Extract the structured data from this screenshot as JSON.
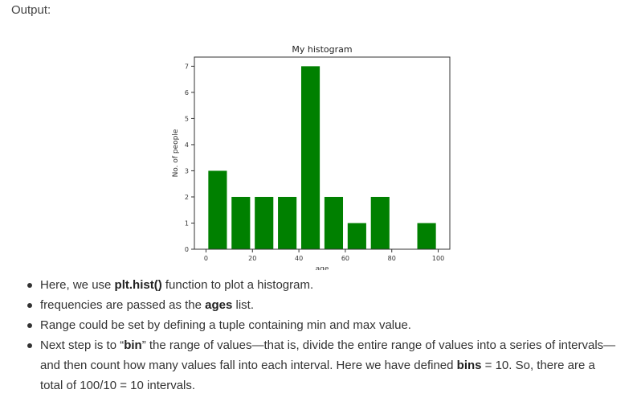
{
  "output_label": "Output:",
  "chart_data": {
    "type": "bar",
    "title": "My histogram",
    "xlabel": "age",
    "ylabel": "No. of people",
    "bins": [
      [
        0,
        10
      ],
      [
        10,
        20
      ],
      [
        20,
        30
      ],
      [
        30,
        40
      ],
      [
        40,
        50
      ],
      [
        50,
        60
      ],
      [
        60,
        70
      ],
      [
        70,
        80
      ],
      [
        80,
        90
      ],
      [
        90,
        100
      ]
    ],
    "values": [
      3,
      2,
      2,
      2,
      7,
      2,
      1,
      2,
      0,
      1
    ],
    "xlim": [
      -5,
      105
    ],
    "ylim": [
      0,
      7.35
    ],
    "xticks": [
      "0",
      "20",
      "40",
      "60",
      "80",
      "100"
    ],
    "yticks": [
      "0",
      "1",
      "2",
      "3",
      "4",
      "5",
      "6",
      "7"
    ],
    "bar_color": "#008000",
    "grid": false
  },
  "notes": [
    {
      "pre": "Here, we use ",
      "bold": "plt.hist()",
      "post": " function to plot a histogram."
    },
    {
      "pre": "frequencies are passed as the ",
      "bold": "ages",
      "post": " list."
    },
    {
      "pre": "Range could be set by defining a tuple containing min and max value.",
      "bold": "",
      "post": ""
    },
    {
      "pre": "Next step is to “",
      "bold": "bin",
      "post": "” the range of values—that is, divide the entire range of values into a series of intervals—and then count how many values fall into each interval. Here we have defined ",
      "bold2": "bins",
      "post2": " = 10. So, there are a total of 100/10 = 10 intervals."
    }
  ]
}
